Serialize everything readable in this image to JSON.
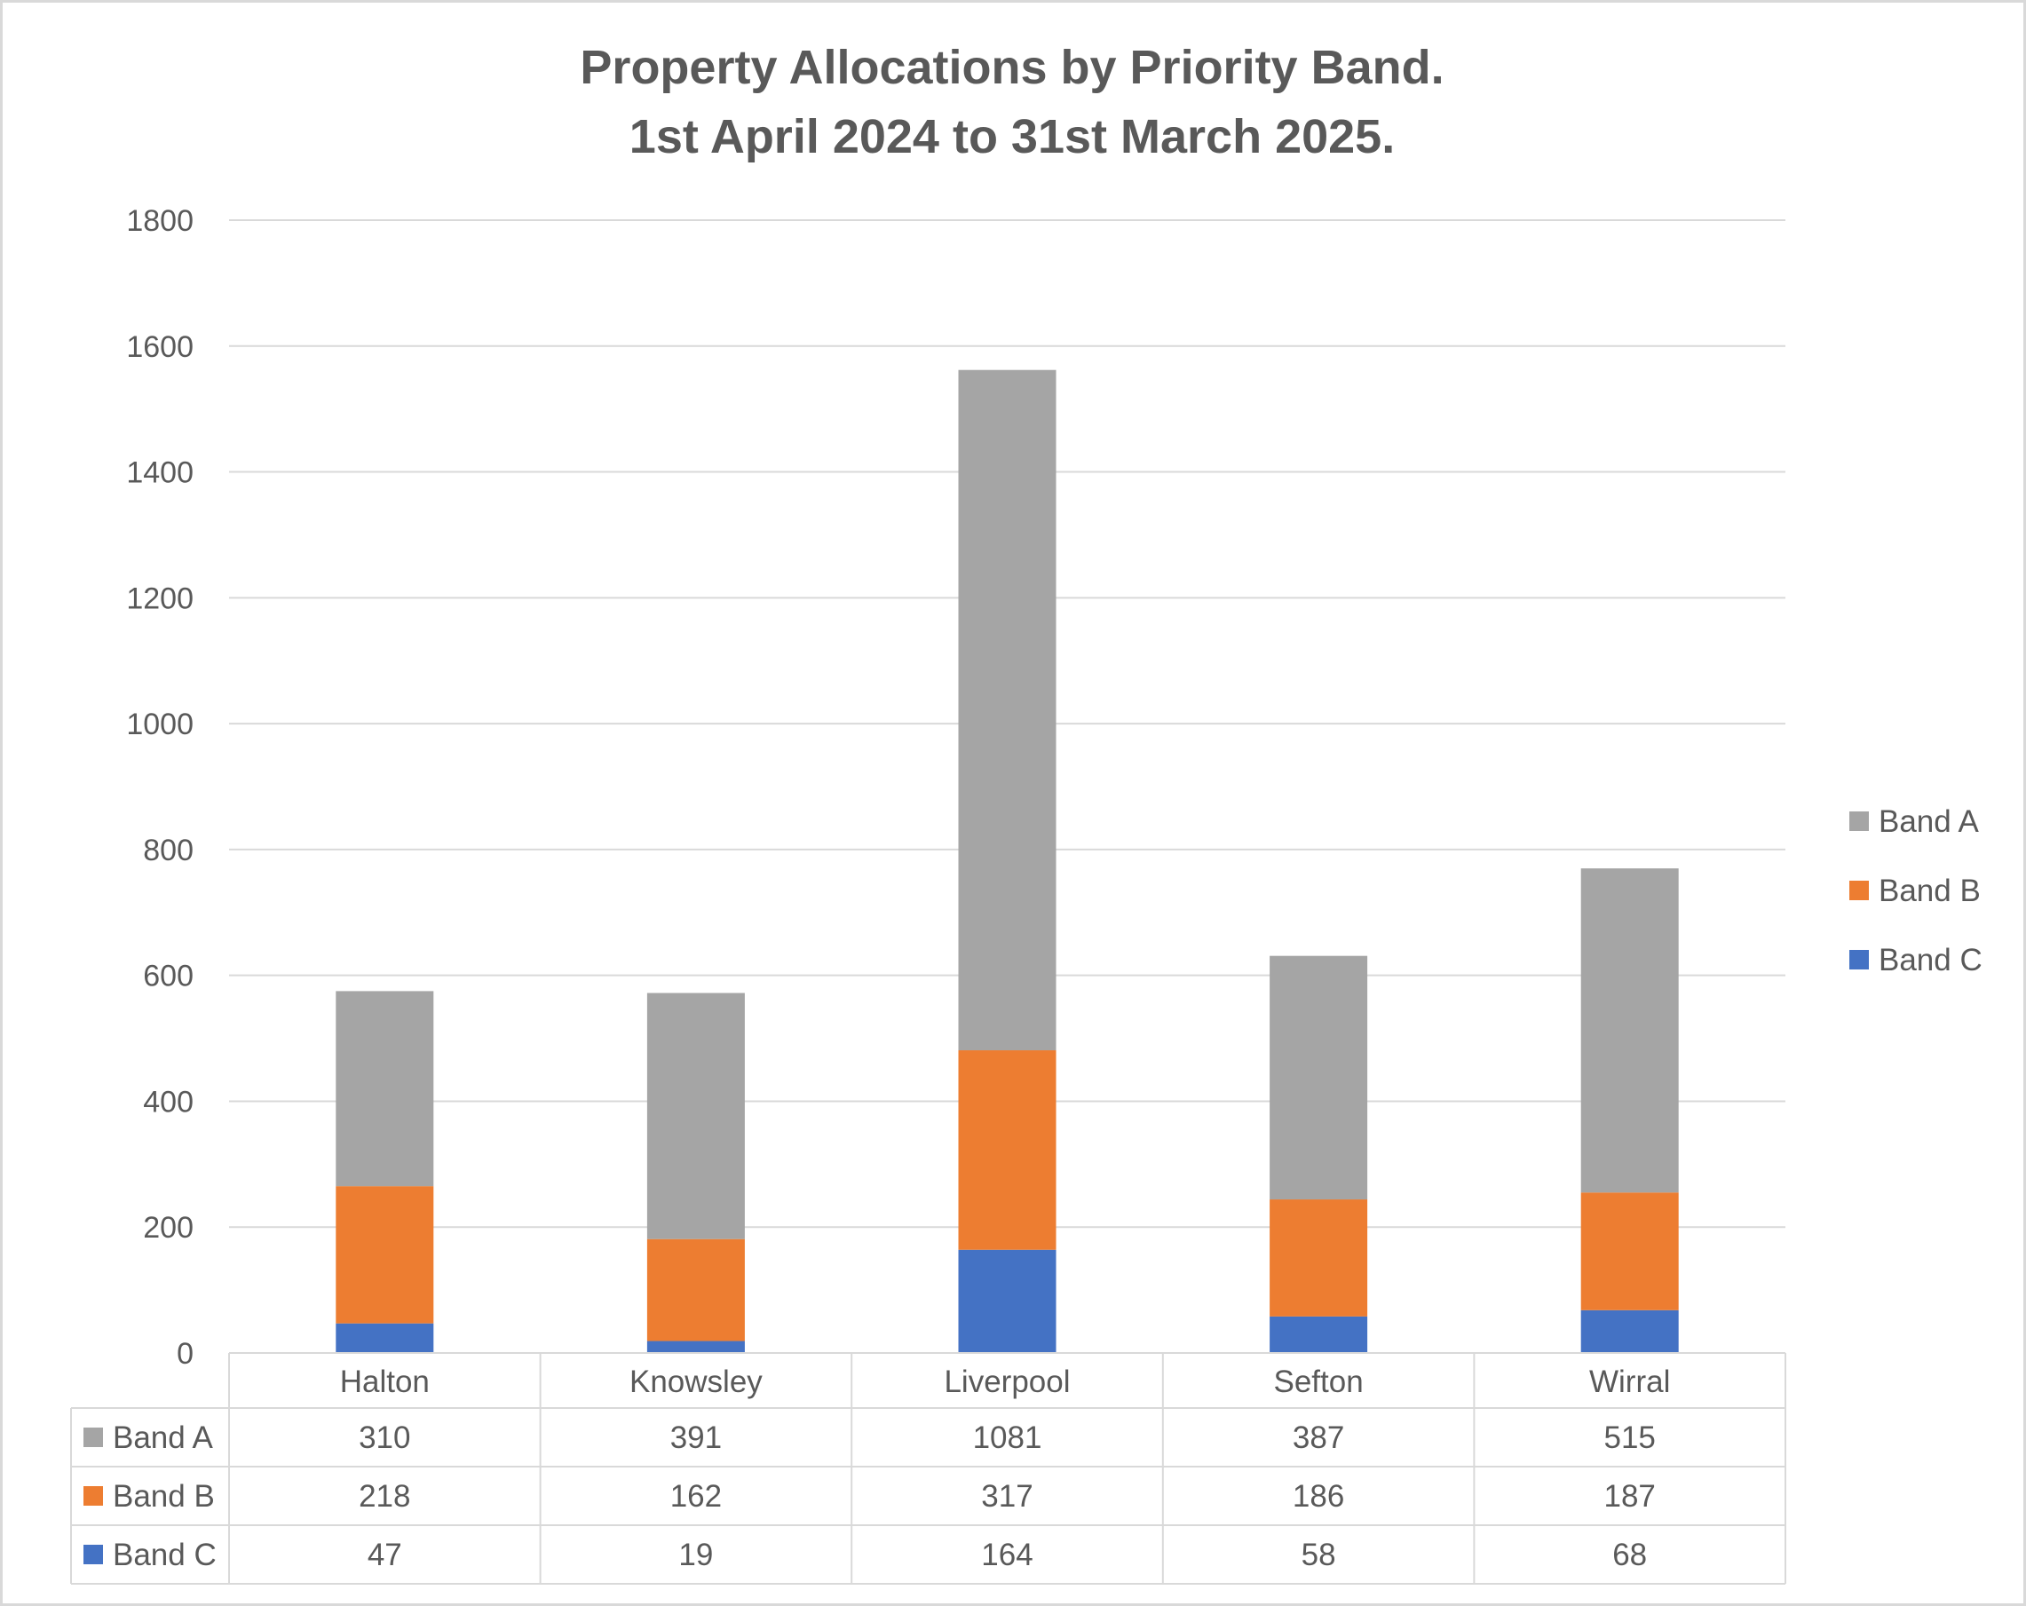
{
  "chart_data": {
    "type": "bar",
    "stacked": true,
    "title_lines": [
      "Property Allocations by Priority Band.",
      "1st April 2024 to 31st March 2025."
    ],
    "categories": [
      "Halton",
      "Knowsley",
      "Liverpool",
      "Sefton",
      "Wirral"
    ],
    "series": [
      {
        "name": "Band C",
        "color": "#4472C4",
        "values": [
          47,
          19,
          164,
          58,
          68
        ]
      },
      {
        "name": "Band B",
        "color": "#ED7D31",
        "values": [
          218,
          162,
          317,
          186,
          187
        ]
      },
      {
        "name": "Band A",
        "color": "#A5A5A5",
        "values": [
          310,
          391,
          1081,
          387,
          515
        ]
      }
    ],
    "table_rows": [
      "Band A",
      "Band B",
      "Band C"
    ],
    "legend_order": [
      "Band A",
      "Band B",
      "Band C"
    ],
    "legend_position": "right",
    "ylim": [
      0,
      1800
    ],
    "yticks": [
      0,
      200,
      400,
      600,
      800,
      1000,
      1200,
      1400,
      1600,
      1800
    ],
    "grid": true,
    "xlabel": "",
    "ylabel": "",
    "data_table": true
  }
}
